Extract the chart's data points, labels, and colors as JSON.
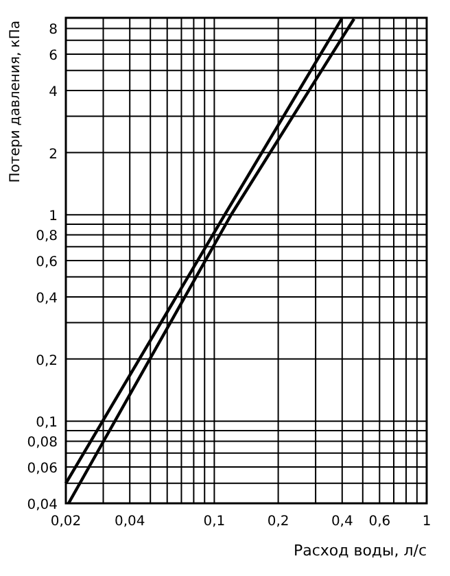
{
  "chart_data": {
    "type": "line",
    "xlabel": "Расход воды, л/с",
    "ylabel": "Потери давления, кПа",
    "log": "xy",
    "grid": true,
    "marker": "none",
    "line_style": "solid",
    "xlim": [
      0.02,
      1
    ],
    "ylim": [
      0.04,
      9
    ],
    "xticks": [
      {
        "value": 0.02,
        "label": "0,02"
      },
      {
        "value": 0.03,
        "label": null
      },
      {
        "value": 0.04,
        "label": "0,04"
      },
      {
        "value": 0.05,
        "label": null
      },
      {
        "value": 0.06,
        "label": null
      },
      {
        "value": 0.07,
        "label": null
      },
      {
        "value": 0.08,
        "label": null
      },
      {
        "value": 0.09,
        "label": null
      },
      {
        "value": 0.1,
        "label": "0,1"
      },
      {
        "value": 0.2,
        "label": "0,2"
      },
      {
        "value": 0.3,
        "label": null
      },
      {
        "value": 0.4,
        "label": "0,4"
      },
      {
        "value": 0.5,
        "label": null
      },
      {
        "value": 0.6,
        "label": "0,6"
      },
      {
        "value": 0.7,
        "label": null
      },
      {
        "value": 0.8,
        "label": null
      },
      {
        "value": 0.9,
        "label": null
      },
      1
    ],
    "yticks": [
      {
        "value": 0.04,
        "label": "0,04"
      },
      {
        "value": 0.05,
        "label": null
      },
      {
        "value": 0.06,
        "label": "0,06"
      },
      {
        "value": 0.07,
        "label": null
      },
      {
        "value": 0.08,
        "label": "0,08"
      },
      {
        "value": 0.09,
        "label": null
      },
      {
        "value": 0.1,
        "label": "0,1"
      },
      {
        "value": 0.2,
        "label": "0,2"
      },
      {
        "value": 0.3,
        "label": null
      },
      {
        "value": 0.4,
        "label": "0,4"
      },
      {
        "value": 0.5,
        "label": null
      },
      {
        "value": 0.6,
        "label": "0,6"
      },
      {
        "value": 0.7,
        "label": null
      },
      {
        "value": 0.8,
        "label": "0,8"
      },
      {
        "value": 0.9,
        "label": null
      },
      1,
      2,
      {
        "value": 3,
        "label": null
      },
      4,
      {
        "value": 5,
        "label": null
      },
      6,
      {
        "value": 7,
        "label": null
      },
      8
    ],
    "series": [
      {
        "color": "#000000",
        "x": [
          0.02,
          0.112,
          0.398
        ],
        "values": [
          0.05,
          1,
          8.9
        ]
      },
      {
        "color": "#000000",
        "x": [
          0.0206,
          0.12,
          0.455
        ],
        "values": [
          0.04,
          1,
          8.9
        ]
      }
    ]
  }
}
